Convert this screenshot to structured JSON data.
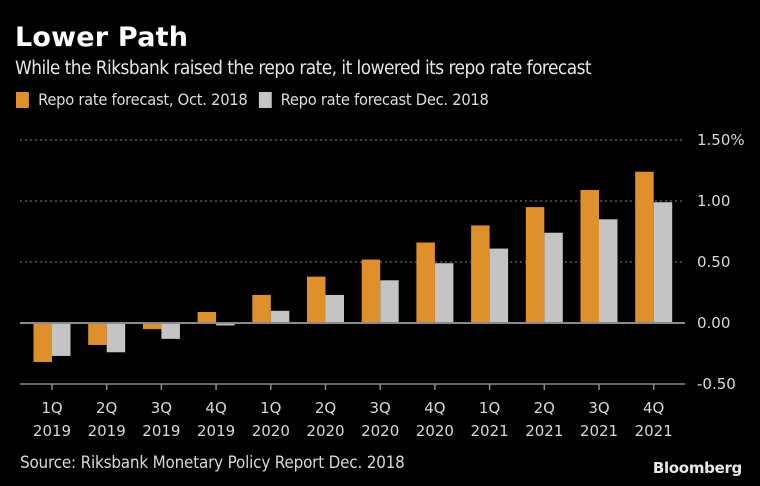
{
  "header": {
    "title": "Lower Path",
    "subtitle": "While the Riksbank raised the repo rate, it lowered its repo rate forecast"
  },
  "footer": {
    "source": "Source: Riksbank Monetary Policy Report Dec. 2018",
    "brand": "Bloomberg"
  },
  "chart_data": {
    "type": "bar",
    "title": "Lower Path",
    "subtitle": "While the Riksbank raised the repo rate, it lowered its repo rate forecast",
    "xlabel": "",
    "ylabel": "",
    "categories": [
      [
        "1Q",
        "2019"
      ],
      [
        "2Q",
        "2019"
      ],
      [
        "3Q",
        "2019"
      ],
      [
        "4Q",
        "2019"
      ],
      [
        "1Q",
        "2020"
      ],
      [
        "2Q",
        "2020"
      ],
      [
        "3Q",
        "2020"
      ],
      [
        "4Q",
        "2020"
      ],
      [
        "1Q",
        "2021"
      ],
      [
        "2Q",
        "2021"
      ],
      [
        "3Q",
        "2021"
      ],
      [
        "4Q",
        "2021"
      ]
    ],
    "series": [
      {
        "name": "Repo rate forecast, Oct. 2018",
        "color": "#e0902a",
        "values": [
          -0.32,
          -0.18,
          -0.05,
          0.09,
          0.23,
          0.38,
          0.52,
          0.66,
          0.8,
          0.95,
          1.09,
          1.24
        ]
      },
      {
        "name": "Repo rate forecast Dec. 2018",
        "color": "#c4c4c4",
        "values": [
          -0.27,
          -0.24,
          -0.13,
          -0.02,
          0.1,
          0.23,
          0.35,
          0.49,
          0.61,
          0.74,
          0.85,
          0.99
        ]
      }
    ],
    "ylim": [
      -0.5,
      1.5
    ],
    "yticks": [
      {
        "value": 1.5,
        "label": "1.50%"
      },
      {
        "value": 1.0,
        "label": "1.00"
      },
      {
        "value": 0.5,
        "label": "0.50"
      },
      {
        "value": 0.0,
        "label": "0.00"
      },
      {
        "value": -0.5,
        "label": "-0.50"
      }
    ],
    "grid": true,
    "legend_position": "top-left",
    "background": "#000000"
  }
}
